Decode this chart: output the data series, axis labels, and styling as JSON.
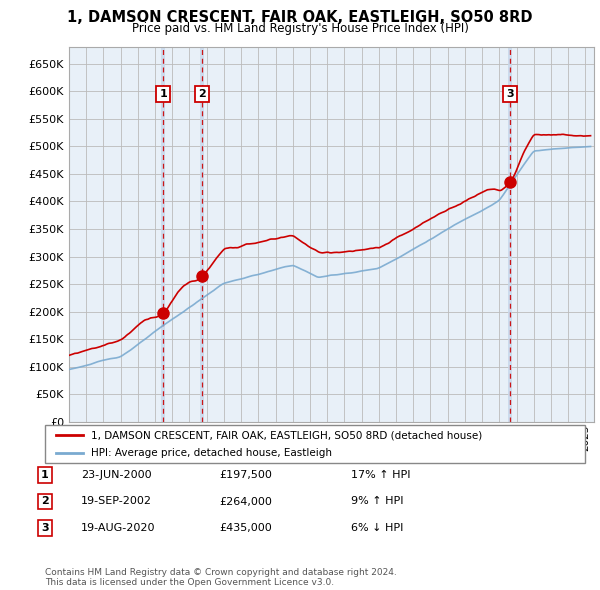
{
  "title": "1, DAMSON CRESCENT, FAIR OAK, EASTLEIGH, SO50 8RD",
  "subtitle": "Price paid vs. HM Land Registry's House Price Index (HPI)",
  "ylim": [
    0,
    680000
  ],
  "yticks": [
    0,
    50000,
    100000,
    150000,
    200000,
    250000,
    300000,
    350000,
    400000,
    450000,
    500000,
    550000,
    600000,
    650000
  ],
  "xlim_start": 1995.0,
  "xlim_end": 2025.5,
  "sale_color": "#cc0000",
  "hpi_color": "#7aaad0",
  "plot_bg_color": "#e8f0f8",
  "grid_color": "#bbbbbb",
  "background_color": "#ffffff",
  "sales": [
    {
      "date": 2000.47,
      "price": 197500,
      "label": "1"
    },
    {
      "date": 2002.72,
      "price": 264000,
      "label": "2"
    },
    {
      "date": 2020.63,
      "price": 435000,
      "label": "3"
    }
  ],
  "transaction_table": [
    {
      "num": "1",
      "date": "23-JUN-2000",
      "price": "£197,500",
      "hpi": "17% ↑ HPI"
    },
    {
      "num": "2",
      "date": "19-SEP-2002",
      "price": "£264,000",
      "hpi": "9% ↑ HPI"
    },
    {
      "num": "3",
      "date": "19-AUG-2020",
      "price": "£435,000",
      "hpi": "6% ↓ HPI"
    }
  ],
  "legend_sale_label": "1, DAMSON CRESCENT, FAIR OAK, EASTLEIGH, SO50 8RD (detached house)",
  "legend_hpi_label": "HPI: Average price, detached house, Eastleigh",
  "footer": "Contains HM Land Registry data © Crown copyright and database right 2024.\nThis data is licensed under the Open Government Licence v3.0.",
  "vlines": [
    2000.47,
    2002.72,
    2020.63
  ],
  "vband_color": "#c8d8ec"
}
